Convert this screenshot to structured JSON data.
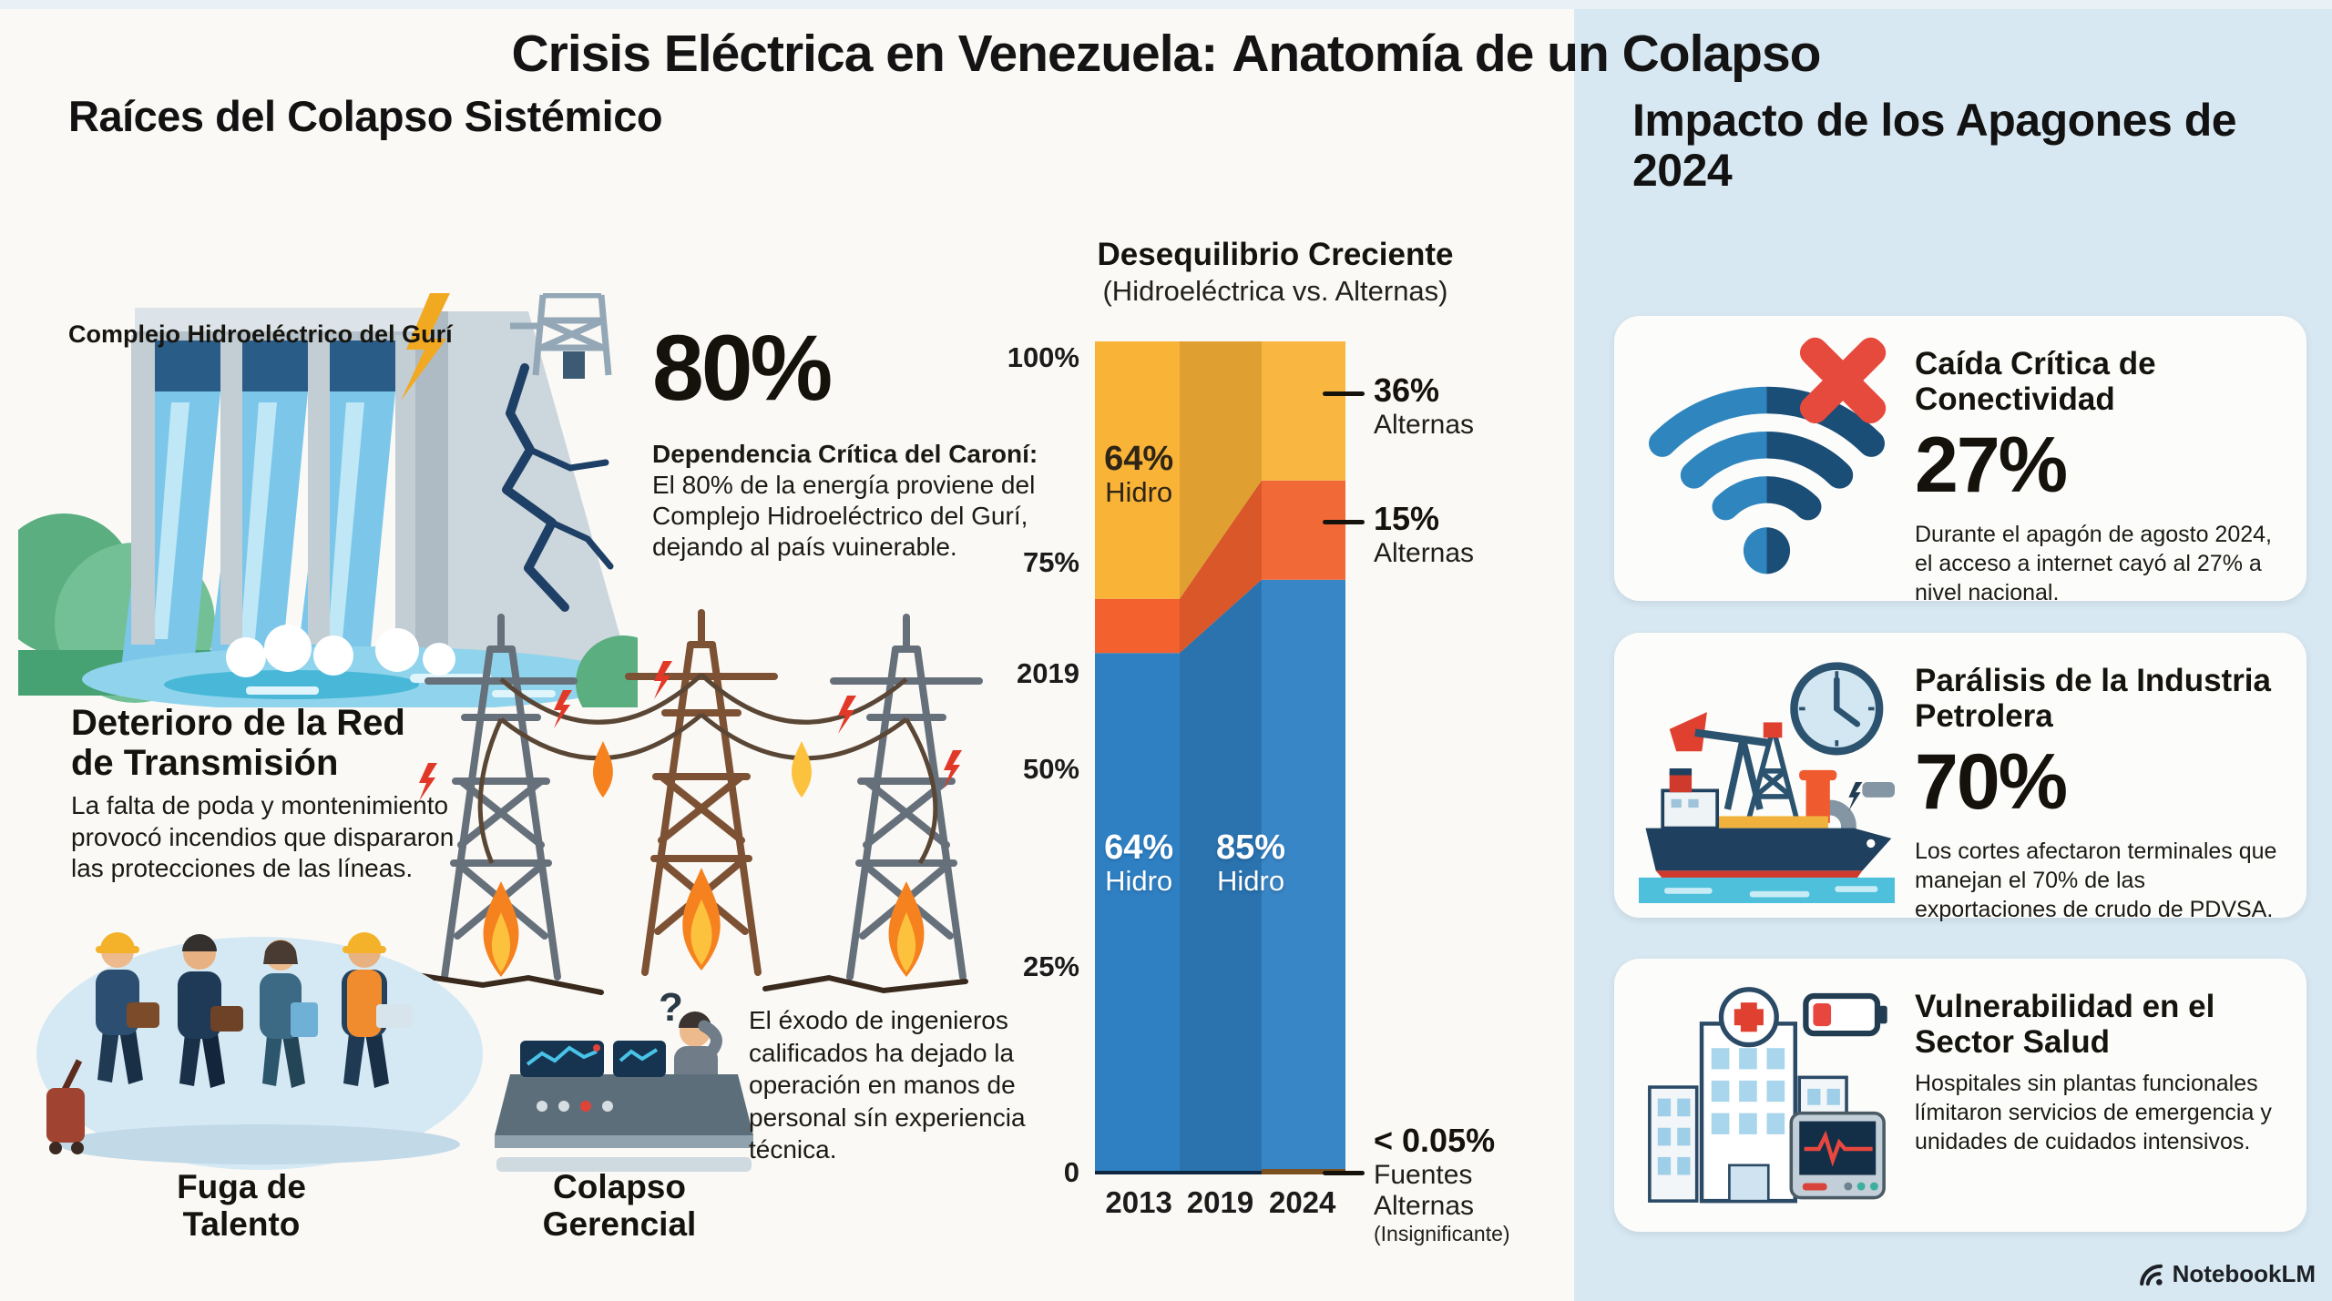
{
  "header": {
    "title_prefix": "Crisis Eléctrica en Venezuela:",
    "title_emphasis": "Anatomía de un Colapso"
  },
  "left_section": {
    "heading": "Raíces del Colapso Sistémico",
    "dam_caption": "Complejo Hidroeléctrico del Gurí",
    "dependency_stat": {
      "value": "80%",
      "lead": "Dependencia Crítica del Caroní:",
      "body": "El 80% de la energía proviene del Complejo Hidroeléctrico del Gurí, dejando al país vuinerable."
    },
    "grid_deterioration": {
      "heading": "Deterioro de la Red de Transmisión",
      "body": "La falta de poda y montenimiento provocó incendios que dispararon las protecciones de las líneas."
    },
    "talent_caption": "Fuga de Talento",
    "management_caption": "Colapso Gerencial",
    "exodus_body": "El éxodo de ingenieros calificados ha dejado la operación en manos de personal sín experiencia técnica."
  },
  "chart_data": {
    "type": "area",
    "stacked": true,
    "title": "Desequilibrio Creciente",
    "subtitle": "(Hidroeléctrica vs. Alternas)",
    "categories": [
      "2013",
      "2019",
      "2024"
    ],
    "ylim": [
      0,
      100
    ],
    "grid": false,
    "legend": "annotated-right",
    "series": [
      {
        "name": "Hidro",
        "color": "#2f80c3",
        "values": [
          64,
          85,
          64
        ]
      },
      {
        "name": "Alternas (banda)",
        "color": "#f2612e",
        "values": [
          6,
          12,
          15
        ]
      },
      {
        "name": "Alternas (tope)",
        "color": "#f9b337",
        "values": [
          30,
          3,
          21
        ]
      }
    ],
    "breakpoints": [
      {
        "f": 0.0,
        "hidro": 62.6,
        "mid": 6.5
      },
      {
        "f": 0.338,
        "hidro": 62.6,
        "mid": 6.5
      },
      {
        "f": 0.665,
        "hidro": 71.4,
        "mid": 11.9
      },
      {
        "f": 1.0,
        "hidro": 71.4,
        "mid": 11.9
      }
    ],
    "colors": {
      "hidro": "#2f80c3",
      "alternas_band": "#f2612e",
      "alternas_top": "#f9b337"
    },
    "y_ticks": [
      {
        "label": "100%",
        "f": 0.02
      },
      {
        "label": "75%",
        "f": 0.266
      },
      {
        "label": "2019",
        "f": 0.399
      },
      {
        "label": "50%",
        "f": 0.514
      },
      {
        "label": "25%",
        "f": 0.751
      },
      {
        "label": "0",
        "f": 0.998
      }
    ],
    "x_labels": [
      {
        "label": "2013",
        "f": 0.175
      },
      {
        "label": "2019",
        "f": 0.5
      },
      {
        "label": "2024",
        "f": 0.828
      }
    ],
    "inner_labels": [
      {
        "value": "64%",
        "name": "Hidro",
        "xf": 0.175,
        "yf": 0.12,
        "style": "dark"
      },
      {
        "value": "64%",
        "name": "Hidro",
        "xf": 0.175,
        "yf": 0.587,
        "style": "light"
      },
      {
        "value": "85%",
        "name": "Hidro",
        "xf": 0.622,
        "yf": 0.587,
        "style": "light"
      }
    ],
    "annotations": [
      {
        "value": "36%",
        "label": "Alternas",
        "sub": "",
        "f": 0.036
      },
      {
        "value": "15%",
        "label": "Alternas",
        "sub": "",
        "f": 0.19
      },
      {
        "value": "< 0.05%",
        "label": "Fuentes Alternas",
        "sub": "(Insignificante)",
        "f": 0.937
      }
    ]
  },
  "impact_section": {
    "heading": "Impacto de los Apagones de 2024",
    "cards": [
      {
        "icon": "wifi-offline-icon",
        "title": "Caída Crítica de Conectividad",
        "value": "27%",
        "body": "Durante el apagón de agosto 2024, el acceso a internet cayó al 27% a nivel nacional."
      },
      {
        "icon": "oil-industry-icon",
        "title": "Parálisis de la Industria Petrolera",
        "value": "70%",
        "body": "Los cortes afectaron terminales que manejan el 70% de las exportaciones de crudo de PDVSA."
      },
      {
        "icon": "hospital-icon",
        "title": "Vulnerabilidad en el Sector Salud",
        "value": "",
        "body": "Hospitales sin plantas funcionales límitaron servicios de emergencia y unidades de cuidados intensivos."
      }
    ]
  },
  "footer": {
    "brand": "NotebookLM"
  }
}
